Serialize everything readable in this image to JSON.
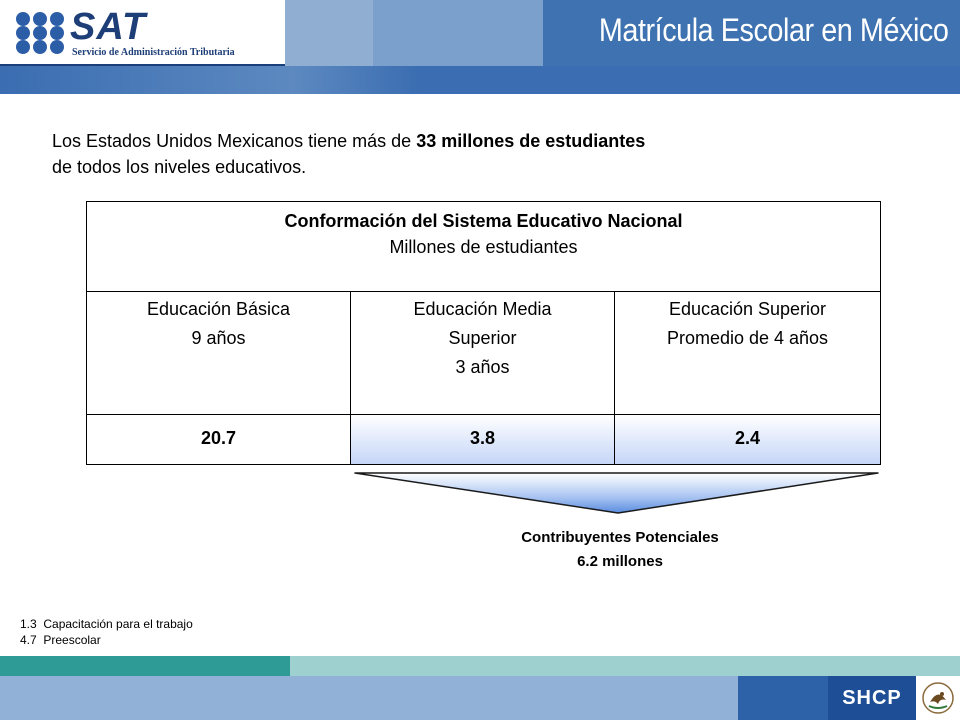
{
  "header": {
    "logo_text": "SAT",
    "logo_subtitle": "Servicio de Administración Tributaria",
    "title": "Matrícula Escolar en México"
  },
  "intro": {
    "part1": "Los Estados Unidos Mexicanos tiene más de ",
    "bold": "33 millones de estudiantes",
    "part2": "de todos los niveles educativos."
  },
  "table": {
    "title": "Conformación del Sistema Educativo Nacional",
    "subtitle": "Millones de estudiantes",
    "columns": [
      {
        "line1": "Educación Básica",
        "line2": "9 años",
        "line3": "",
        "value": "20.7"
      },
      {
        "line1": "Educación Media",
        "line2": "Superior",
        "line3": "3 años",
        "value": "3.8"
      },
      {
        "line1": "Educación Superior",
        "line2": "Promedio de 4 años",
        "line3": "",
        "value": "2.4"
      }
    ]
  },
  "contributors": {
    "label": "Contribuyentes Potenciales",
    "value": "6.2 millones"
  },
  "notes": [
    "1.3  Capacitación para el trabajo",
    "4.7  Preescolar"
  ],
  "footer": {
    "brand": "SHCP"
  },
  "colors": {
    "header_blue": "#3f72b1",
    "footer_teal": "#2e9b97",
    "funnel_blue": "#5b8de0"
  }
}
